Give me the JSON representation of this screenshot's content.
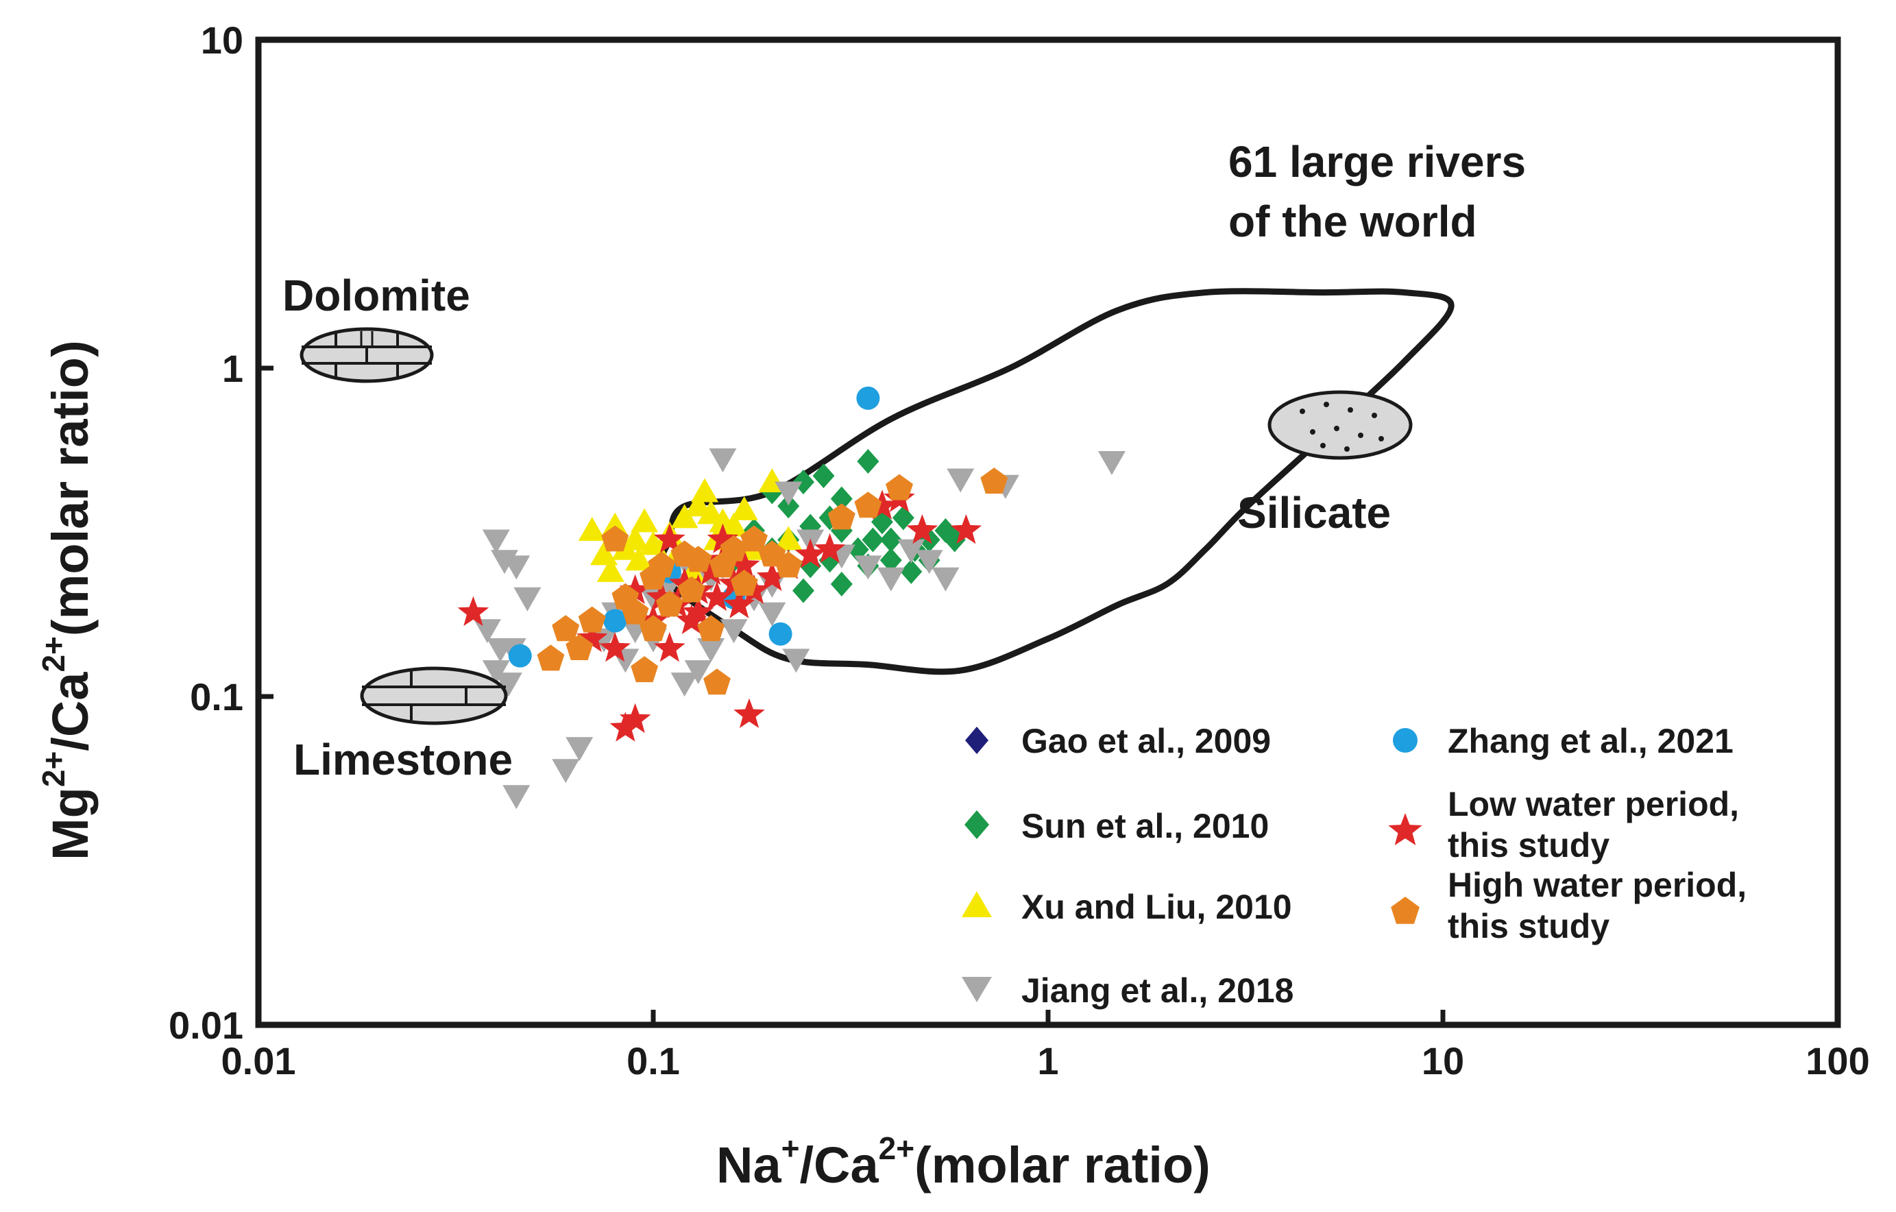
{
  "chart_data": {
    "type": "scatter",
    "x_scale": "log",
    "y_scale": "log",
    "xlim": [
      0.01,
      100
    ],
    "ylim": [
      0.01,
      10
    ],
    "x_ticks": [
      "0.01",
      "0.1",
      "1",
      "10",
      "100"
    ],
    "y_ticks": [
      "0.01",
      "0.1",
      "1",
      "10"
    ],
    "xlabel": {
      "base": "Na",
      "sup1": "+",
      "mid": "/Ca",
      "sup2": "2+",
      "tail": "(molar ratio)"
    },
    "ylabel": {
      "base": "Mg",
      "sup1": "2+",
      "mid": "/Ca",
      "sup2": "2+",
      "tail": "(molar ratio)"
    },
    "annotations": {
      "rivers_line1": "61 large rivers",
      "rivers_line2": "of the world",
      "dolomite": "Dolomite",
      "limestone": "Limestone",
      "silicate": "Silicate"
    },
    "rivers_envelope": [
      [
        0.11,
        0.3
      ],
      [
        0.12,
        0.38
      ],
      [
        0.2,
        0.42
      ],
      [
        0.4,
        0.7
      ],
      [
        0.8,
        1.0
      ],
      [
        1.5,
        1.5
      ],
      [
        2.5,
        1.7
      ],
      [
        5,
        1.7
      ],
      [
        8,
        1.7
      ],
      [
        10.5,
        1.55
      ],
      [
        8,
        1.05
      ],
      [
        5,
        0.62
      ],
      [
        3.2,
        0.38
      ],
      [
        2.5,
        0.28
      ],
      [
        2.0,
        0.22
      ],
      [
        1.5,
        0.19
      ],
      [
        1,
        0.15
      ],
      [
        0.6,
        0.12
      ],
      [
        0.35,
        0.125
      ],
      [
        0.22,
        0.13
      ],
      [
        0.16,
        0.16
      ],
      [
        0.11,
        0.22
      ],
      [
        0.105,
        0.26
      ]
    ],
    "series": [
      {
        "name": "Gao et al., 2009",
        "marker": "diamond",
        "color": "#1f1f7a",
        "points": []
      },
      {
        "name": "Sun et al., 2010",
        "marker": "diamond",
        "color": "#1a9a4a",
        "points": [
          [
            0.2,
            0.42
          ],
          [
            0.22,
            0.38
          ],
          [
            0.24,
            0.45
          ],
          [
            0.27,
            0.47
          ],
          [
            0.3,
            0.4
          ],
          [
            0.35,
            0.52
          ],
          [
            0.22,
            0.3
          ],
          [
            0.25,
            0.33
          ],
          [
            0.28,
            0.35
          ],
          [
            0.3,
            0.32
          ],
          [
            0.33,
            0.28
          ],
          [
            0.36,
            0.3
          ],
          [
            0.4,
            0.3
          ],
          [
            0.43,
            0.35
          ],
          [
            0.46,
            0.28
          ],
          [
            0.5,
            0.3
          ],
          [
            0.55,
            0.32
          ],
          [
            0.58,
            0.3
          ],
          [
            0.25,
            0.25
          ],
          [
            0.3,
            0.22
          ],
          [
            0.35,
            0.25
          ],
          [
            0.4,
            0.26
          ],
          [
            0.45,
            0.24
          ],
          [
            0.2,
            0.28
          ],
          [
            0.18,
            0.32
          ],
          [
            0.24,
            0.21
          ],
          [
            0.16,
            0.26
          ],
          [
            0.28,
            0.26
          ],
          [
            0.5,
            0.26
          ],
          [
            0.38,
            0.34
          ]
        ]
      },
      {
        "name": "Xu and Liu, 2010",
        "marker": "triangle-up",
        "color": "#f5e800",
        "points": [
          [
            0.07,
            0.32
          ],
          [
            0.075,
            0.27
          ],
          [
            0.08,
            0.33
          ],
          [
            0.085,
            0.28
          ],
          [
            0.09,
            0.3
          ],
          [
            0.095,
            0.34
          ],
          [
            0.1,
            0.29
          ],
          [
            0.105,
            0.26
          ],
          [
            0.11,
            0.31
          ],
          [
            0.12,
            0.35
          ],
          [
            0.13,
            0.38
          ],
          [
            0.14,
            0.36
          ],
          [
            0.15,
            0.34
          ],
          [
            0.16,
            0.33
          ],
          [
            0.17,
            0.37
          ],
          [
            0.2,
            0.45
          ],
          [
            0.22,
            0.3
          ],
          [
            0.078,
            0.24
          ],
          [
            0.115,
            0.27
          ],
          [
            0.125,
            0.24
          ],
          [
            0.135,
            0.42
          ],
          [
            0.18,
            0.28
          ],
          [
            0.092,
            0.26
          ],
          [
            0.145,
            0.3
          ]
        ]
      },
      {
        "name": "Jiang et al., 2018",
        "marker": "triangle-down",
        "color": "#a8a8a8",
        "points": [
          [
            0.04,
            0.3
          ],
          [
            0.042,
            0.26
          ],
          [
            0.045,
            0.25
          ],
          [
            0.048,
            0.2
          ],
          [
            0.038,
            0.16
          ],
          [
            0.041,
            0.14
          ],
          [
            0.044,
            0.14
          ],
          [
            0.04,
            0.12
          ],
          [
            0.043,
            0.11
          ],
          [
            0.045,
            0.05
          ],
          [
            0.06,
            0.06
          ],
          [
            0.065,
            0.07
          ],
          [
            0.075,
            0.15
          ],
          [
            0.08,
            0.18
          ],
          [
            0.085,
            0.13
          ],
          [
            0.09,
            0.16
          ],
          [
            0.1,
            0.2
          ],
          [
            0.11,
            0.22
          ],
          [
            0.12,
            0.11
          ],
          [
            0.13,
            0.12
          ],
          [
            0.14,
            0.14
          ],
          [
            0.15,
            0.25
          ],
          [
            0.15,
            0.53
          ],
          [
            0.18,
            0.2
          ],
          [
            0.2,
            0.22
          ],
          [
            0.22,
            0.42
          ],
          [
            0.23,
            0.13
          ],
          [
            0.25,
            0.3
          ],
          [
            0.3,
            0.27
          ],
          [
            0.35,
            0.25
          ],
          [
            0.4,
            0.23
          ],
          [
            0.45,
            0.28
          ],
          [
            0.5,
            0.26
          ],
          [
            0.55,
            0.23
          ],
          [
            0.6,
            0.46
          ],
          [
            0.78,
            0.44
          ],
          [
            1.45,
            0.52
          ],
          [
            0.1,
            0.15
          ],
          [
            0.16,
            0.16
          ],
          [
            0.2,
            0.18
          ],
          [
            0.12,
            0.26
          ],
          [
            0.14,
            0.23
          ]
        ]
      },
      {
        "name": "Zhang et al., 2021",
        "marker": "circle",
        "color": "#1e9fe0",
        "points": [
          [
            0.046,
            0.133
          ],
          [
            0.08,
            0.17
          ],
          [
            0.11,
            0.24
          ],
          [
            0.21,
            0.155
          ],
          [
            0.35,
            0.81
          ],
          [
            0.16,
            0.2
          ]
        ]
      },
      {
        "name": "Low water period, this study",
        "marker": "star",
        "color": "#e02828",
        "points": [
          [
            0.035,
            0.18
          ],
          [
            0.07,
            0.15
          ],
          [
            0.08,
            0.14
          ],
          [
            0.085,
            0.08
          ],
          [
            0.09,
            0.085
          ],
          [
            0.09,
            0.21
          ],
          [
            0.1,
            0.17
          ],
          [
            0.105,
            0.2
          ],
          [
            0.11,
            0.14
          ],
          [
            0.115,
            0.19
          ],
          [
            0.12,
            0.22
          ],
          [
            0.125,
            0.17
          ],
          [
            0.13,
            0.21
          ],
          [
            0.14,
            0.24
          ],
          [
            0.145,
            0.2
          ],
          [
            0.15,
            0.26
          ],
          [
            0.16,
            0.22
          ],
          [
            0.165,
            0.19
          ],
          [
            0.17,
            0.25
          ],
          [
            0.175,
            0.088
          ],
          [
            0.18,
            0.21
          ],
          [
            0.2,
            0.23
          ],
          [
            0.22,
            0.25
          ],
          [
            0.25,
            0.27
          ],
          [
            0.28,
            0.28
          ],
          [
            0.38,
            0.38
          ],
          [
            0.42,
            0.4
          ],
          [
            0.48,
            0.32
          ],
          [
            0.62,
            0.32
          ],
          [
            0.11,
            0.3
          ],
          [
            0.13,
            0.18
          ],
          [
            0.15,
            0.3
          ]
        ]
      },
      {
        "name": "High water period, this study",
        "marker": "pentagon",
        "color": "#e88522",
        "points": [
          [
            0.055,
            0.13
          ],
          [
            0.06,
            0.16
          ],
          [
            0.065,
            0.14
          ],
          [
            0.07,
            0.17
          ],
          [
            0.08,
            0.3
          ],
          [
            0.085,
            0.2
          ],
          [
            0.09,
            0.18
          ],
          [
            0.095,
            0.12
          ],
          [
            0.1,
            0.23
          ],
          [
            0.105,
            0.25
          ],
          [
            0.11,
            0.19
          ],
          [
            0.12,
            0.27
          ],
          [
            0.13,
            0.26
          ],
          [
            0.14,
            0.16
          ],
          [
            0.15,
            0.25
          ],
          [
            0.16,
            0.28
          ],
          [
            0.18,
            0.3
          ],
          [
            0.2,
            0.27
          ],
          [
            0.22,
            0.25
          ],
          [
            0.3,
            0.35
          ],
          [
            0.35,
            0.38
          ],
          [
            0.42,
            0.43
          ],
          [
            0.73,
            0.45
          ],
          [
            0.145,
            0.11
          ],
          [
            0.1,
            0.16
          ],
          [
            0.125,
            0.21
          ],
          [
            0.17,
            0.22
          ]
        ]
      }
    ],
    "legend": {
      "placement": "bottom-right",
      "items": [
        {
          "label": "Gao et al., 2009",
          "label2": ""
        },
        {
          "label": "Zhang et al., 2021",
          "label2": ""
        },
        {
          "label": "Sun et al., 2010",
          "label2": ""
        },
        {
          "label": "Low water period,",
          "label2": "this study"
        },
        {
          "label": "Xu and Liu, 2010",
          "label2": ""
        },
        {
          "label": "High water period,",
          "label2": "this study"
        },
        {
          "label": "Jiang et al., 2018",
          "label2": ""
        }
      ]
    }
  }
}
